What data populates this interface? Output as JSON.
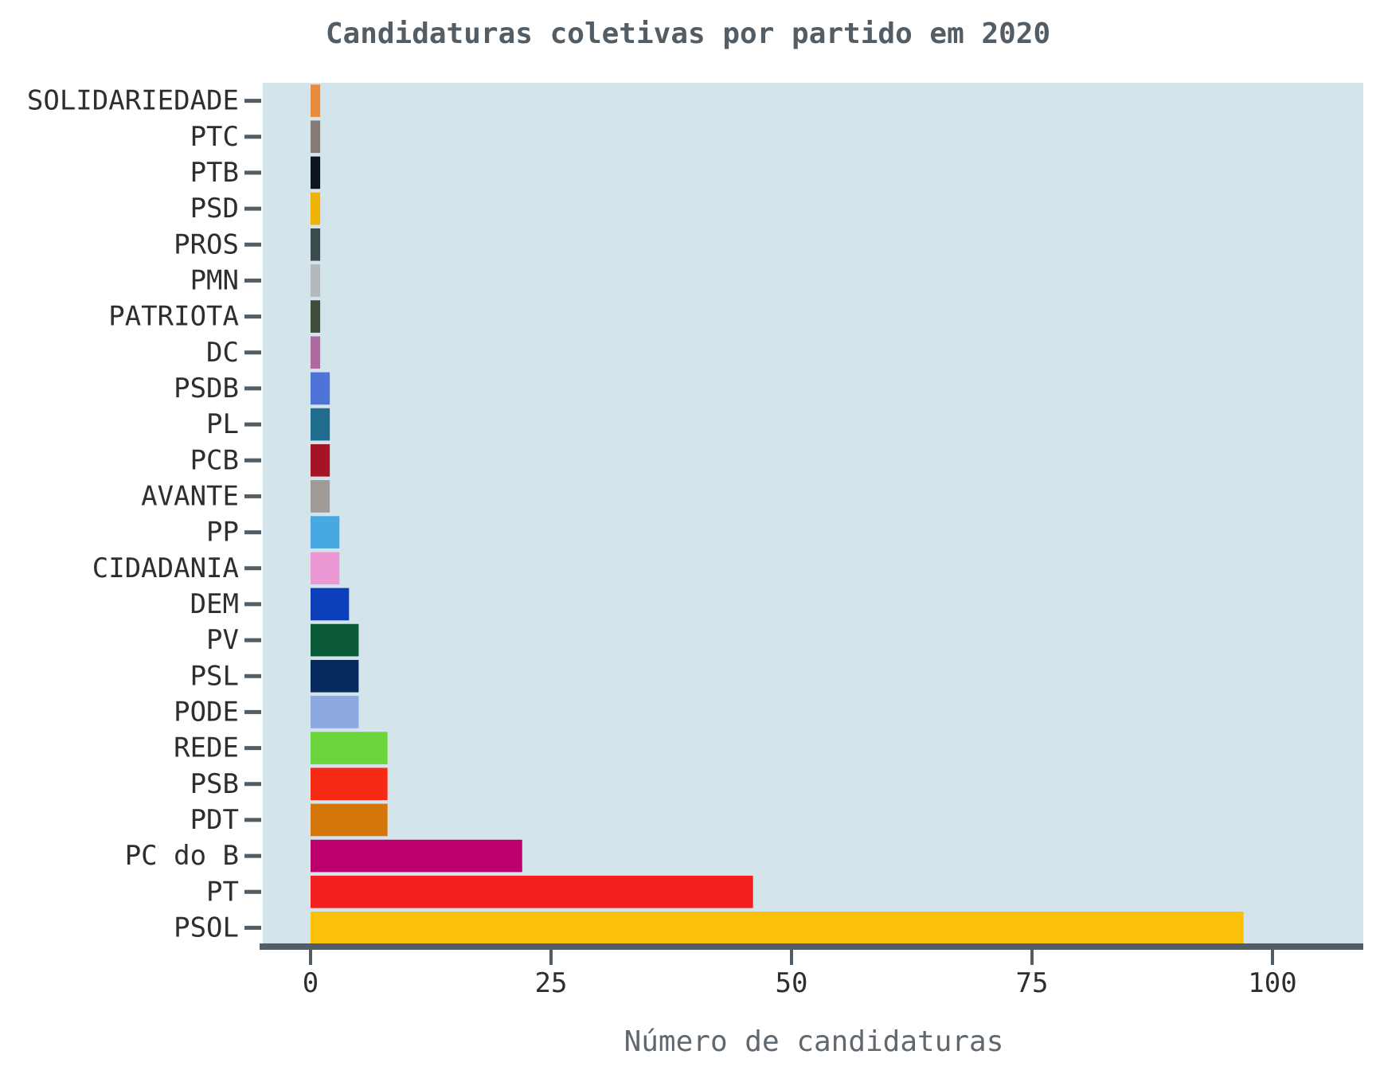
{
  "chart_data": {
    "type": "bar",
    "orientation": "horizontal",
    "title": "Candidaturas coletivas por partido em 2020",
    "xlabel": "Número de candidaturas",
    "ylabel": "",
    "xlim": [
      -5,
      110
    ],
    "xticks": [
      0,
      25,
      50,
      75,
      100
    ],
    "grid": false,
    "legend": "none",
    "plot_background": "#d4e4eb",
    "axis_color": "#525d66",
    "categories": [
      "SOLIDARIEDADE",
      "PTC",
      "PTB",
      "PSD",
      "PROS",
      "PMN",
      "PATRIOTA",
      "DC",
      "PSDB",
      "PL",
      "PCB",
      "AVANTE",
      "PP",
      "CIDADANIA",
      "DEM",
      "PV",
      "PSL",
      "PODE",
      "REDE",
      "PSB",
      "PDT",
      "PC do B",
      "PT",
      "PSOL"
    ],
    "values": [
      1,
      1,
      1,
      1,
      1,
      1,
      1,
      1,
      2,
      2,
      2,
      2,
      3,
      3,
      4,
      5,
      5,
      5,
      8,
      8,
      8,
      22,
      46,
      97
    ],
    "colors": [
      "#e88b3c",
      "#857a76",
      "#0d1520",
      "#f0b207",
      "#3b4a4a",
      "#b6b9bb",
      "#414c3a",
      "#ad6ba0",
      "#4e74d8",
      "#1f6c8e",
      "#a51425",
      "#a09a98",
      "#48a9e2",
      "#ec98d5",
      "#0d3fbb",
      "#0b5a38",
      "#062a5e",
      "#8da9e0",
      "#6bd53b",
      "#f52b15",
      "#d5760b",
      "#bb006b",
      "#f41f1f",
      "#fcc20a"
    ]
  }
}
